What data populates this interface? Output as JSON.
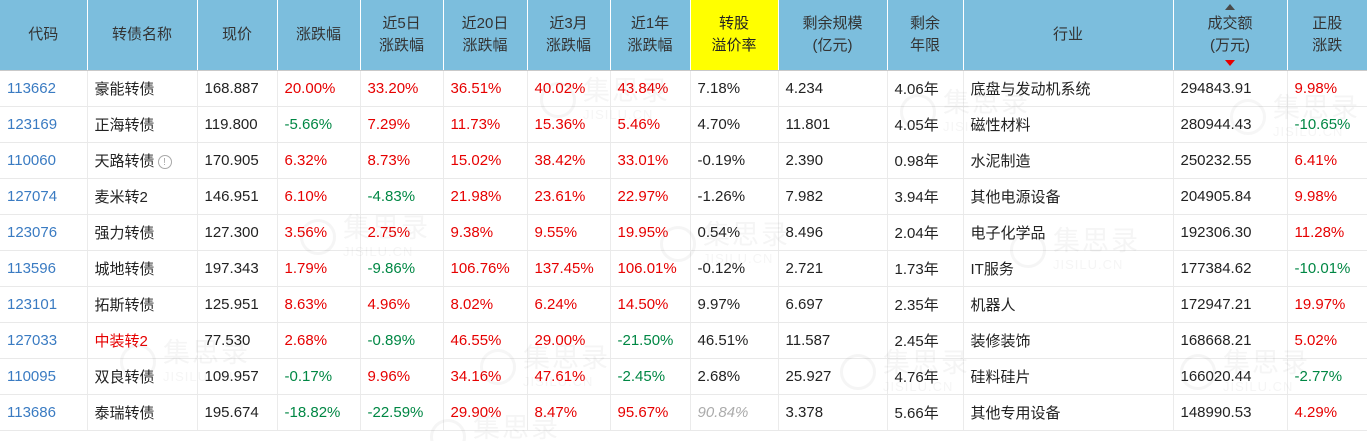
{
  "colors": {
    "header_bg": "#7CBEDD",
    "highlight_bg": "#FFFF00",
    "up_red": "#E60000",
    "down_green": "#008744",
    "code_blue": "#3A7BC2",
    "muted_gray": "#ABABAB"
  },
  "watermark": {
    "text": "集思录",
    "subtext": "JISILU.CN"
  },
  "table": {
    "columns": [
      {
        "key": "code",
        "label": "代码"
      },
      {
        "key": "name",
        "label": "转债名称"
      },
      {
        "key": "price",
        "label": "现价"
      },
      {
        "key": "chg",
        "label": "涨跌幅",
        "signed": true
      },
      {
        "key": "chg5",
        "label": "近5日\n涨跌幅",
        "signed": true
      },
      {
        "key": "chg20",
        "label": "近20日\n涨跌幅",
        "signed": true
      },
      {
        "key": "chg3m",
        "label": "近3月\n涨跌幅",
        "signed": true
      },
      {
        "key": "chg1y",
        "label": "近1年\n涨跌幅",
        "signed": true
      },
      {
        "key": "premium",
        "label": "转股\n溢价率",
        "highlight": true
      },
      {
        "key": "size",
        "label": "剩余规模\n(亿元)"
      },
      {
        "key": "years",
        "label": "剩余\n年限"
      },
      {
        "key": "industry",
        "label": "行业"
      },
      {
        "key": "turnover",
        "label": "成交额\n(万元)",
        "sorted": "desc"
      },
      {
        "key": "stock_chg",
        "label": "正股\n涨跌",
        "signed": true
      }
    ],
    "rows": [
      {
        "code": "113662",
        "name": "豪能转债",
        "name_red": false,
        "info_icon": false,
        "price": "168.887",
        "chg": "20.00%",
        "chg5": "33.20%",
        "chg20": "36.51%",
        "chg3m": "40.02%",
        "chg1y": "43.84%",
        "premium": "7.18%",
        "premium_muted": false,
        "size": "4.234",
        "years": "4.06年",
        "industry": "底盘与发动机系统",
        "turnover": "294843.91",
        "stock_chg": "9.98%"
      },
      {
        "code": "123169",
        "name": "正海转债",
        "name_red": false,
        "info_icon": false,
        "price": "119.800",
        "chg": "-5.66%",
        "chg5": "7.29%",
        "chg20": "11.73%",
        "chg3m": "15.36%",
        "chg1y": "5.46%",
        "premium": "4.70%",
        "premium_muted": false,
        "size": "11.801",
        "years": "4.05年",
        "industry": "磁性材料",
        "turnover": "280944.43",
        "stock_chg": "-10.65%"
      },
      {
        "code": "110060",
        "name": "天路转债",
        "name_red": false,
        "info_icon": true,
        "price": "170.905",
        "chg": "6.32%",
        "chg5": "8.73%",
        "chg20": "15.02%",
        "chg3m": "38.42%",
        "chg1y": "33.01%",
        "premium": "-0.19%",
        "premium_muted": false,
        "size": "2.390",
        "years": "0.98年",
        "industry": "水泥制造",
        "turnover": "250232.55",
        "stock_chg": "6.41%"
      },
      {
        "code": "127074",
        "name": "麦米转2",
        "name_red": false,
        "info_icon": false,
        "price": "146.951",
        "chg": "6.10%",
        "chg5": "-4.83%",
        "chg20": "21.98%",
        "chg3m": "23.61%",
        "chg1y": "22.97%",
        "premium": "-1.26%",
        "premium_muted": false,
        "size": "7.982",
        "years": "3.94年",
        "industry": "其他电源设备",
        "turnover": "204905.84",
        "stock_chg": "9.98%"
      },
      {
        "code": "123076",
        "name": "强力转债",
        "name_red": false,
        "info_icon": false,
        "price": "127.300",
        "chg": "3.56%",
        "chg5": "2.75%",
        "chg20": "9.38%",
        "chg3m": "9.55%",
        "chg1y": "19.95%",
        "premium": "0.54%",
        "premium_muted": false,
        "size": "8.496",
        "years": "2.04年",
        "industry": "电子化学品",
        "turnover": "192306.30",
        "stock_chg": "11.28%"
      },
      {
        "code": "113596",
        "name": "城地转债",
        "name_red": false,
        "info_icon": false,
        "price": "197.343",
        "chg": "1.79%",
        "chg5": "-9.86%",
        "chg20": "106.76%",
        "chg3m": "137.45%",
        "chg1y": "106.01%",
        "premium": "-0.12%",
        "premium_muted": false,
        "size": "2.721",
        "years": "1.73年",
        "industry": "IT服务",
        "turnover": "177384.62",
        "stock_chg": "-10.01%"
      },
      {
        "code": "123101",
        "name": "拓斯转债",
        "name_red": false,
        "info_icon": false,
        "price": "125.951",
        "chg": "8.63%",
        "chg5": "4.96%",
        "chg20": "8.02%",
        "chg3m": "6.24%",
        "chg1y": "14.50%",
        "premium": "9.97%",
        "premium_muted": false,
        "size": "6.697",
        "years": "2.35年",
        "industry": "机器人",
        "turnover": "172947.21",
        "stock_chg": "19.97%"
      },
      {
        "code": "127033",
        "name": "中装转2",
        "name_red": true,
        "info_icon": false,
        "price": "77.530",
        "chg": "2.68%",
        "chg5": "-0.89%",
        "chg20": "46.55%",
        "chg3m": "29.00%",
        "chg1y": "-21.50%",
        "premium": "46.51%",
        "premium_muted": false,
        "size": "11.587",
        "years": "2.45年",
        "industry": "装修装饰",
        "turnover": "168668.21",
        "stock_chg": "5.02%"
      },
      {
        "code": "110095",
        "name": "双良转债",
        "name_red": false,
        "info_icon": false,
        "price": "109.957",
        "chg": "-0.17%",
        "chg5": "9.96%",
        "chg20": "34.16%",
        "chg3m": "47.61%",
        "chg1y": "-2.45%",
        "premium": "2.68%",
        "premium_muted": false,
        "size": "25.927",
        "years": "4.76年",
        "industry": "硅料硅片",
        "turnover": "166020.44",
        "stock_chg": "-2.77%"
      },
      {
        "code": "113686",
        "name": "泰瑞转债",
        "name_red": false,
        "info_icon": false,
        "price": "195.674",
        "chg": "-18.82%",
        "chg5": "-22.59%",
        "chg20": "29.90%",
        "chg3m": "8.47%",
        "chg1y": "95.67%",
        "premium": "90.84%",
        "premium_muted": true,
        "size": "3.378",
        "years": "5.66年",
        "industry": "其他专用设备",
        "turnover": "148990.53",
        "stock_chg": "4.29%"
      }
    ]
  }
}
